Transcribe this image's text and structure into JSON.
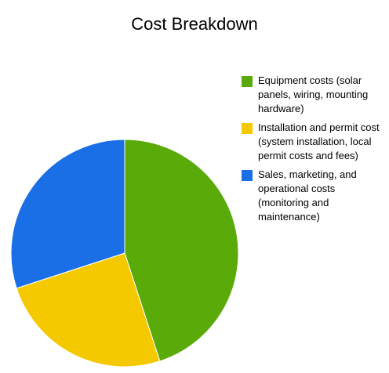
{
  "chart_data": {
    "type": "pie",
    "title": "Cost Breakdown",
    "legend_position": "right",
    "start_angle_deg": 0,
    "direction": "clockwise",
    "slices": [
      {
        "label": "Equipment costs (solar panels, wiring, mounting hardware)",
        "value": 45,
        "color": "#5aaa0a"
      },
      {
        "label": "Installation and permit cost (system installation, local permit costs and fees)",
        "value": 25,
        "color": "#f5c900"
      },
      {
        "label": "Sales, marketing, and operational costs (monitoring and maintenance)",
        "value": 30,
        "color": "#1a6fe6"
      }
    ]
  }
}
